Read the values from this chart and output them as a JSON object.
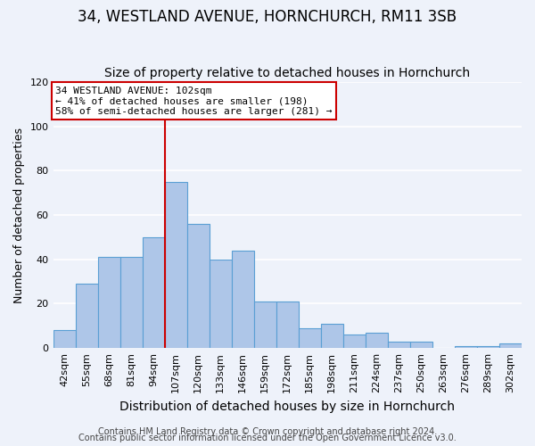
{
  "title": "34, WESTLAND AVENUE, HORNCHURCH, RM11 3SB",
  "subtitle": "Size of property relative to detached houses in Hornchurch",
  "xlabel": "Distribution of detached houses by size in Hornchurch",
  "ylabel": "Number of detached properties",
  "bar_labels": [
    "42sqm",
    "55sqm",
    "68sqm",
    "81sqm",
    "94sqm",
    "107sqm",
    "120sqm",
    "133sqm",
    "146sqm",
    "159sqm",
    "172sqm",
    "185sqm",
    "198sqm",
    "211sqm",
    "224sqm",
    "237sqm",
    "250sqm",
    "263sqm",
    "276sqm",
    "289sqm",
    "302sqm"
  ],
  "bar_values": [
    8,
    29,
    41,
    41,
    50,
    75,
    56,
    40,
    44,
    21,
    21,
    9,
    11,
    6,
    7,
    3,
    3,
    0,
    1,
    1,
    2
  ],
  "bar_color": "#aec6e8",
  "bar_edgecolor": "#5a9fd4",
  "bar_width": 1.0,
  "vline_x_idx": 5,
  "vline_color": "#cc0000",
  "annotation_title": "34 WESTLAND AVENUE: 102sqm",
  "annotation_line1": "← 41% of detached houses are smaller (198)",
  "annotation_line2": "58% of semi-detached houses are larger (281) →",
  "annotation_box_color": "#ffffff",
  "annotation_box_edgecolor": "#cc0000",
  "ylim": [
    0,
    120
  ],
  "yticks": [
    0,
    20,
    40,
    60,
    80,
    100,
    120
  ],
  "footer1": "Contains HM Land Registry data © Crown copyright and database right 2024.",
  "footer2": "Contains public sector information licensed under the Open Government Licence v3.0.",
  "title_fontsize": 12,
  "subtitle_fontsize": 10,
  "xlabel_fontsize": 10,
  "ylabel_fontsize": 9,
  "tick_fontsize": 8,
  "annotation_fontsize": 8,
  "footer_fontsize": 7,
  "background_color": "#eef2fa",
  "grid_color": "#ffffff",
  "grid_linewidth": 1.2
}
